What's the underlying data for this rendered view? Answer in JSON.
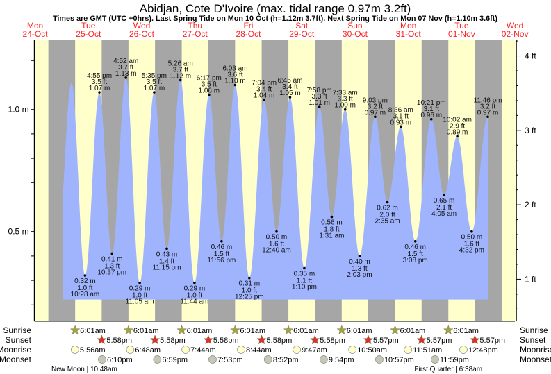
{
  "colors": {
    "night": "#a6a6a6",
    "day": "#ffffcc",
    "water": "#a0b4fe",
    "date": "#ff2020",
    "sunrise": "#a6a23a",
    "sunset": "#e03020",
    "moonrise": "#ffffcc",
    "moonset": "#c8c6b4"
  },
  "chart_data": {
    "type": "area",
    "title": "Abidjan, Cote D'Ivoire (max. tidal range 0.97m 3.2ft)",
    "subtitle": "Times are GMT (UTC +0hrs). Last Spring Tide on Mon 10 Oct (h=1.12m 3.7ft). Next Spring Tide on Mon 07 Nov (h=1.10m 3.6ft)",
    "days": [
      {
        "dow": "Mon",
        "date": "24-Oct"
      },
      {
        "dow": "Tue",
        "date": "25-Oct"
      },
      {
        "dow": "Wed",
        "date": "26-Oct"
      },
      {
        "dow": "Thu",
        "date": "27-Oct"
      },
      {
        "dow": "Fri",
        "date": "28-Oct"
      },
      {
        "dow": "Sat",
        "date": "29-Oct"
      },
      {
        "dow": "Sun",
        "date": "30-Oct"
      },
      {
        "dow": "Mon",
        "date": "31-Oct"
      },
      {
        "dow": "Tue",
        "date": "01-Nov"
      },
      {
        "dow": "Wed",
        "date": "02-Nov"
      }
    ],
    "y_left": {
      "unit": "m",
      "labels": [
        "0.5 m",
        "1.0 m"
      ],
      "values": [
        0.5,
        1.0
      ]
    },
    "y_right": {
      "unit": "ft",
      "labels": [
        "1 ft",
        "2 ft",
        "3 ft",
        "4 ft"
      ],
      "values": [
        1,
        2,
        3,
        4
      ]
    },
    "curve_lead_in": [
      {
        "day": 0,
        "hour": 22.0,
        "m": 0.42
      },
      {
        "day": 1,
        "hour": 4.4,
        "m": 1.11
      }
    ],
    "tides": [
      {
        "day": 1,
        "time": "10:28 am",
        "m": "0.32 m",
        "ft": "1.0 ft",
        "type": "low"
      },
      {
        "day": 1,
        "time": "4:55 pm",
        "m": "1.07 m",
        "ft": "3.5 ft",
        "type": "high"
      },
      {
        "day": 1,
        "time": "10:37 pm",
        "m": "0.41 m",
        "ft": "1.3 ft",
        "type": "low"
      },
      {
        "day": 2,
        "time": "4:52 am",
        "m": "1.13 m",
        "ft": "3.7 ft",
        "type": "high"
      },
      {
        "day": 2,
        "time": "11:05 am",
        "m": "0.29 m",
        "ft": "1.0 ft",
        "type": "low"
      },
      {
        "day": 2,
        "time": "5:35 pm",
        "m": "1.07 m",
        "ft": "3.5 ft",
        "type": "high"
      },
      {
        "day": 2,
        "time": "11:15 pm",
        "m": "0.43 m",
        "ft": "1.4 ft",
        "type": "low"
      },
      {
        "day": 3,
        "time": "5:26 am",
        "m": "1.12 m",
        "ft": "3.7 ft",
        "type": "high"
      },
      {
        "day": 3,
        "time": "11:44 am",
        "m": "0.29 m",
        "ft": "1.0 ft",
        "type": "low"
      },
      {
        "day": 3,
        "time": "6:17 pm",
        "m": "1.06 m",
        "ft": "3.5 ft",
        "type": "high"
      },
      {
        "day": 3,
        "time": "11:56 pm",
        "m": "0.46 m",
        "ft": "1.5 ft",
        "type": "low"
      },
      {
        "day": 4,
        "time": "6:03 am",
        "m": "1.10 m",
        "ft": "3.6 ft",
        "type": "high"
      },
      {
        "day": 4,
        "time": "12:25 pm",
        "m": "0.31 m",
        "ft": "1.0 ft",
        "type": "low"
      },
      {
        "day": 4,
        "time": "7:04 pm",
        "m": "1.04 m",
        "ft": "3.4 ft",
        "type": "high"
      },
      {
        "day": 5,
        "time": "12:40 am",
        "m": "0.50 m",
        "ft": "1.6 ft",
        "type": "low"
      },
      {
        "day": 5,
        "time": "6:45 am",
        "m": "1.05 m",
        "ft": "3.4 ft",
        "type": "high"
      },
      {
        "day": 5,
        "time": "1:10 pm",
        "m": "0.35 m",
        "ft": "1.1 ft",
        "type": "low"
      },
      {
        "day": 5,
        "time": "7:58 pm",
        "m": "1.01 m",
        "ft": "3.3 ft",
        "type": "high"
      },
      {
        "day": 6,
        "time": "1:31 am",
        "m": "0.56 m",
        "ft": "1.8 ft",
        "type": "low"
      },
      {
        "day": 6,
        "time": "7:33 am",
        "m": "1.00 m",
        "ft": "3.3 ft",
        "type": "high"
      },
      {
        "day": 6,
        "time": "2:03 pm",
        "m": "0.40 m",
        "ft": "1.3 ft",
        "type": "low"
      },
      {
        "day": 6,
        "time": "9:03 pm",
        "m": "0.97 m",
        "ft": "3.2 ft",
        "type": "high"
      },
      {
        "day": 7,
        "time": "2:35 am",
        "m": "0.62 m",
        "ft": "2.0 ft",
        "type": "low"
      },
      {
        "day": 7,
        "time": "8:36 am",
        "m": "0.93 m",
        "ft": "3.1 ft",
        "type": "high"
      },
      {
        "day": 7,
        "time": "3:08 pm",
        "m": "0.46 m",
        "ft": "1.5 ft",
        "type": "low"
      },
      {
        "day": 7,
        "time": "10:21 pm",
        "m": "0.96 m",
        "ft": "3.1 ft",
        "type": "high"
      },
      {
        "day": 8,
        "time": "4:05 am",
        "m": "0.65 m",
        "ft": "2.1 ft",
        "type": "low"
      },
      {
        "day": 8,
        "time": "10:02 am",
        "m": "0.89 m",
        "ft": "2.9 ft",
        "type": "high"
      },
      {
        "day": 8,
        "time": "4:32 pm",
        "m": "0.50 m",
        "ft": "1.6 ft",
        "type": "low"
      },
      {
        "day": 8,
        "time": "11:46 pm",
        "m": "0.97 m",
        "ft": "3.2 ft",
        "type": "high"
      }
    ]
  },
  "astro": {
    "row_labels": {
      "sunrise": "Sunrise",
      "sunset": "Sunset",
      "moonrise": "Moonrise",
      "moonset": "Moonset"
    },
    "sunrise": [
      {
        "day": 1,
        "time": "6:01am"
      },
      {
        "day": 2,
        "time": "6:01am"
      },
      {
        "day": 3,
        "time": "6:01am"
      },
      {
        "day": 4,
        "time": "6:01am"
      },
      {
        "day": 5,
        "time": "6:01am"
      },
      {
        "day": 6,
        "time": "6:01am"
      },
      {
        "day": 7,
        "time": "6:01am"
      },
      {
        "day": 8,
        "time": "6:01am"
      }
    ],
    "sunset": [
      {
        "day": 1,
        "time": "5:58pm"
      },
      {
        "day": 2,
        "time": "5:58pm"
      },
      {
        "day": 3,
        "time": "5:58pm"
      },
      {
        "day": 4,
        "time": "5:58pm"
      },
      {
        "day": 5,
        "time": "5:58pm"
      },
      {
        "day": 6,
        "time": "5:57pm"
      },
      {
        "day": 7,
        "time": "5:57pm"
      },
      {
        "day": 8,
        "time": "5:57pm"
      }
    ],
    "moonrise": [
      {
        "day": 1,
        "time": "5:56am"
      },
      {
        "day": 2,
        "time": "6:48am"
      },
      {
        "day": 3,
        "time": "7:44am"
      },
      {
        "day": 4,
        "time": "8:44am"
      },
      {
        "day": 5,
        "time": "9:47am"
      },
      {
        "day": 6,
        "time": "10:50am"
      },
      {
        "day": 7,
        "time": "11:51am"
      },
      {
        "day": 8,
        "time": "12:48pm"
      }
    ],
    "moonset": [
      {
        "day": 1,
        "time": "6:10pm"
      },
      {
        "day": 2,
        "time": "6:59pm"
      },
      {
        "day": 3,
        "time": "7:53pm"
      },
      {
        "day": 4,
        "time": "8:52pm"
      },
      {
        "day": 5,
        "time": "9:54pm"
      },
      {
        "day": 6,
        "time": "10:57pm"
      },
      {
        "day": 7,
        "time": "11:59pm"
      }
    ],
    "phases": [
      {
        "day": 1,
        "time": "10:48am",
        "text": "New Moon | 10:48am"
      },
      {
        "day": 8,
        "time": "6:38am",
        "text": "First Quarter | 6:38am"
      }
    ]
  }
}
